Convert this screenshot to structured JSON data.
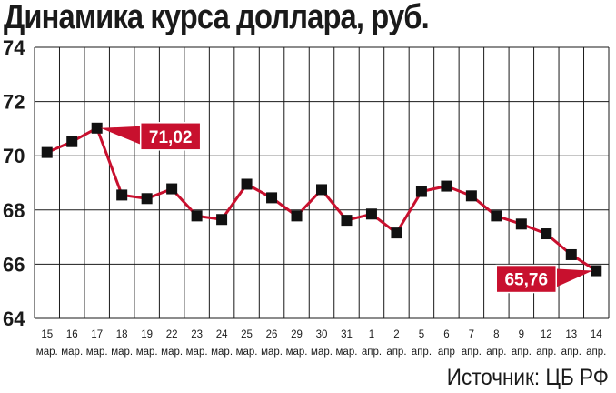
{
  "title": "Динамика курса доллара, руб.",
  "source": "Источник: ЦБ РФ",
  "colors": {
    "line": "#c8102e",
    "marker": "#111111",
    "label_bg": "#c8102e",
    "grid": "#1a1a1a",
    "text": "#1a1a1a"
  },
  "chart_data": {
    "type": "line",
    "title": "Динамика курса доллара, руб.",
    "ylim": [
      64,
      74
    ],
    "yticks": [
      64,
      66,
      68,
      70,
      72,
      74
    ],
    "grid": true,
    "categories": [
      [
        "15",
        "мар."
      ],
      [
        "16",
        "мар."
      ],
      [
        "17",
        "мар."
      ],
      [
        "18",
        "мар."
      ],
      [
        "19",
        "мар."
      ],
      [
        "22",
        "мар."
      ],
      [
        "23",
        "мар."
      ],
      [
        "24",
        "мар."
      ],
      [
        "25",
        "мар."
      ],
      [
        "26",
        "мар."
      ],
      [
        "29",
        "мар."
      ],
      [
        "30",
        "мар."
      ],
      [
        "31",
        "мар."
      ],
      [
        "1",
        "апр."
      ],
      [
        "2",
        "апр."
      ],
      [
        "5",
        "апр."
      ],
      [
        "6",
        "апр"
      ],
      [
        "7",
        "апр."
      ],
      [
        "8",
        "апр."
      ],
      [
        "9",
        "апр."
      ],
      [
        "12",
        "апр."
      ],
      [
        "13",
        "апр."
      ],
      [
        "14",
        "апр."
      ]
    ],
    "series": [
      {
        "values": [
          70.12,
          70.52,
          71.02,
          68.55,
          68.42,
          68.78,
          67.78,
          67.65,
          68.95,
          68.45,
          67.78,
          68.75,
          67.62,
          67.85,
          67.15,
          68.68,
          68.88,
          68.52,
          67.78,
          67.48,
          67.12,
          66.35,
          65.76
        ]
      }
    ],
    "annotations": [
      {
        "index": 2,
        "text": "71,02"
      },
      {
        "index": 22,
        "text": "65,76"
      }
    ]
  }
}
